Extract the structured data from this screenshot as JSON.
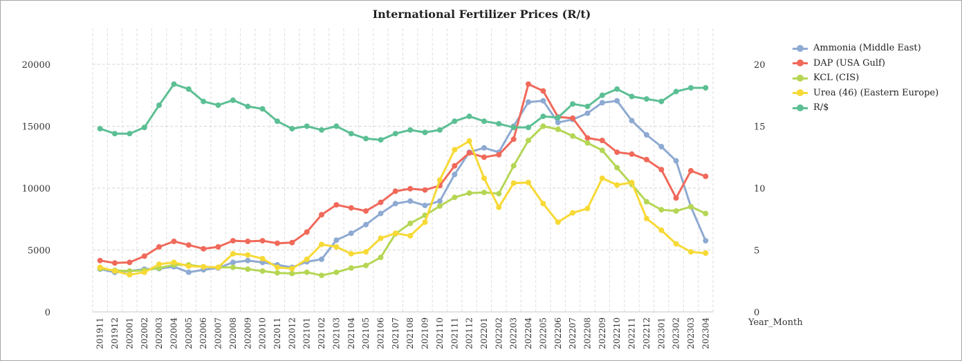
{
  "chart_data": {
    "type": "line",
    "title": "International Fertilizer Prices (R/t)",
    "xlabel": "Year_Month",
    "ylabel": "",
    "y2label": "",
    "ylim": [
      0,
      22000
    ],
    "y2lim": [
      0,
      22
    ],
    "yticks": [
      "0",
      "5000",
      "10000",
      "15000",
      "20000"
    ],
    "y2ticks": [
      "0",
      "5",
      "10",
      "15",
      "20"
    ],
    "grid": true,
    "legend_position": "right",
    "categories": [
      "201911",
      "201912",
      "202001",
      "202002",
      "202003",
      "202004",
      "202005",
      "202006",
      "202007",
      "202008",
      "202009",
      "202010",
      "202011",
      "202012",
      "202101",
      "202102",
      "202103",
      "202104",
      "202105",
      "202106",
      "202107",
      "202108",
      "202109",
      "202110",
      "202111",
      "202112",
      "202201",
      "202202",
      "202203",
      "202204",
      "202205",
      "202206",
      "202207",
      "202208",
      "202209",
      "202210",
      "202211",
      "202212",
      "202301",
      "202302",
      "202303",
      "202304"
    ],
    "series": [
      {
        "name": "Ammonia (Middle East)",
        "axis": "left",
        "color": "#8eaad2",
        "values": [
          3450,
          3200,
          3300,
          3450,
          3500,
          3650,
          3200,
          3400,
          3550,
          4000,
          4150,
          4000,
          3800,
          3600,
          4050,
          4250,
          5800,
          6350,
          7050,
          7950,
          8750,
          8950,
          8600,
          8950,
          11100,
          12900,
          13250,
          12900,
          15000,
          16950,
          17050,
          15300,
          15550,
          16050,
          16900,
          17050,
          15450,
          14300,
          13350,
          12200,
          8500,
          5750
        ]
      },
      {
        "name": "DAP (USA Gulf)",
        "axis": "left",
        "color": "#f0695a",
        "values": [
          4150,
          3950,
          4000,
          4500,
          5250,
          5700,
          5400,
          5100,
          5250,
          5750,
          5700,
          5750,
          5550,
          5600,
          6450,
          7850,
          8650,
          8400,
          8150,
          8850,
          9750,
          9950,
          9850,
          10200,
          11800,
          12850,
          12500,
          12700,
          13950,
          18400,
          17850,
          15750,
          15650,
          14050,
          13850,
          12900,
          12750,
          12300,
          11500,
          9200,
          11400,
          10950
        ]
      },
      {
        "name": "KCL (CIS)",
        "axis": "left",
        "color": "#b5d654",
        "values": [
          3500,
          3350,
          3300,
          3350,
          3550,
          3800,
          3800,
          3650,
          3600,
          3600,
          3450,
          3300,
          3150,
          3100,
          3200,
          2950,
          3200,
          3550,
          3750,
          4400,
          6300,
          7150,
          7800,
          8550,
          9250,
          9600,
          9650,
          9550,
          11800,
          13850,
          15000,
          14750,
          14200,
          13650,
          13050,
          11650,
          10300,
          8900,
          8250,
          8150,
          8500,
          7950
        ]
      },
      {
        "name": "Urea (46) (Eastern Europe)",
        "axis": "left",
        "color": "#f7d935",
        "values": [
          3600,
          3300,
          3000,
          3200,
          3850,
          4000,
          3700,
          3650,
          3600,
          4700,
          4600,
          4300,
          3600,
          3500,
          4250,
          5450,
          5250,
          4700,
          4850,
          5950,
          6350,
          6150,
          7250,
          10650,
          13100,
          13800,
          10800,
          8450,
          10400,
          10450,
          8750,
          7250,
          8000,
          8350,
          10800,
          10250,
          10450,
          7550,
          6600,
          5500,
          4850,
          4750
        ]
      },
      {
        "name": "R/$",
        "axis": "right",
        "color": "#5cbf94",
        "values": [
          14.8,
          14.4,
          14.4,
          14.9,
          16.7,
          18.4,
          18.0,
          17.0,
          16.7,
          17.1,
          16.6,
          16.4,
          15.4,
          14.8,
          15.0,
          14.7,
          15.0,
          14.4,
          14.0,
          13.9,
          14.4,
          14.7,
          14.5,
          14.7,
          15.4,
          15.8,
          15.4,
          15.2,
          14.9,
          14.9,
          15.8,
          15.7,
          16.8,
          16.6,
          17.5,
          18.0,
          17.4,
          17.2,
          17.0,
          17.8,
          18.1,
          18.1
        ]
      }
    ]
  }
}
